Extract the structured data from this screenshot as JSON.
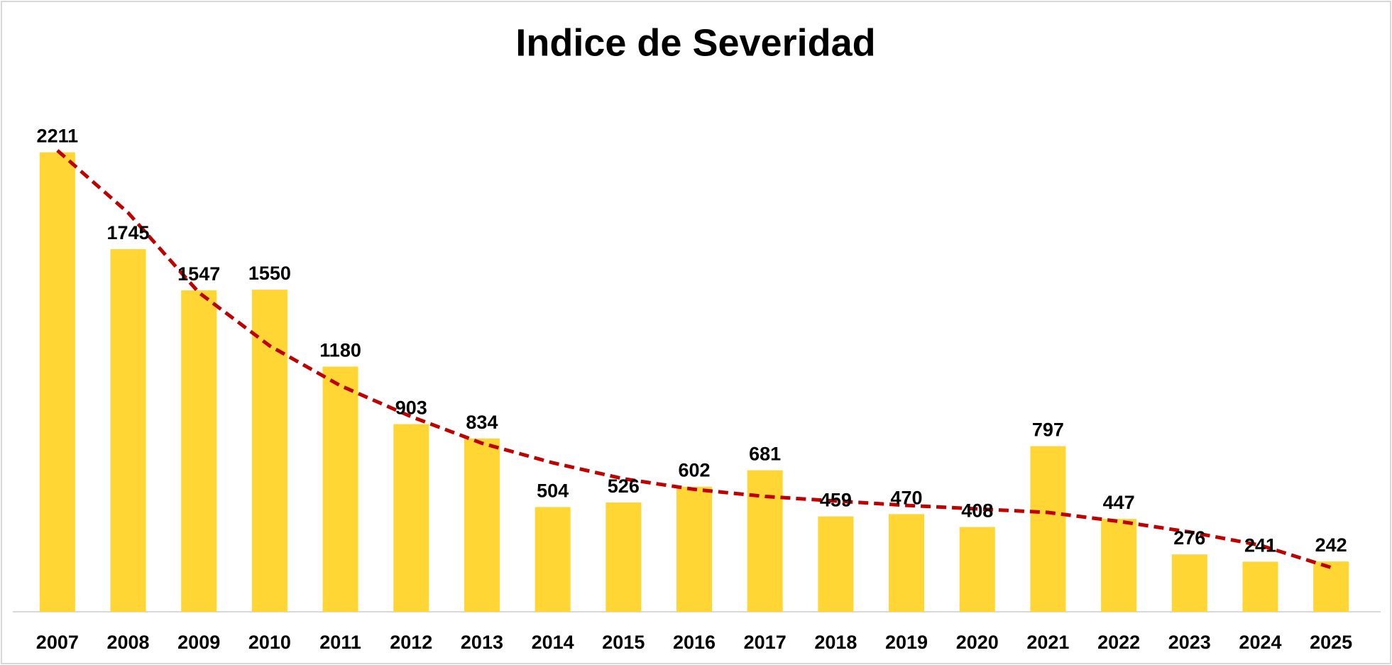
{
  "chart_data": {
    "type": "bar",
    "title": "Indice de Severidad",
    "categories": [
      "2007",
      "2008",
      "2009",
      "2010",
      "2011",
      "2012",
      "2013",
      "2014",
      "2015",
      "2016",
      "2017",
      "2018",
      "2019",
      "2020",
      "2021",
      "2022",
      "2023",
      "2024",
      "2025"
    ],
    "values": [
      2211,
      1745,
      1547,
      1550,
      1180,
      903,
      834,
      504,
      526,
      602,
      681,
      459,
      470,
      408,
      797,
      447,
      276,
      241,
      242
    ],
    "color": "#ffd633",
    "trend": {
      "color": "#c00000",
      "values": [
        2220,
        1920,
        1536,
        1280,
        1088,
        939,
        811,
        717,
        640,
        589,
        555,
        533,
        512,
        495,
        478,
        435,
        384,
        320,
        213
      ]
    },
    "ylim": [
      0,
      2500
    ]
  }
}
